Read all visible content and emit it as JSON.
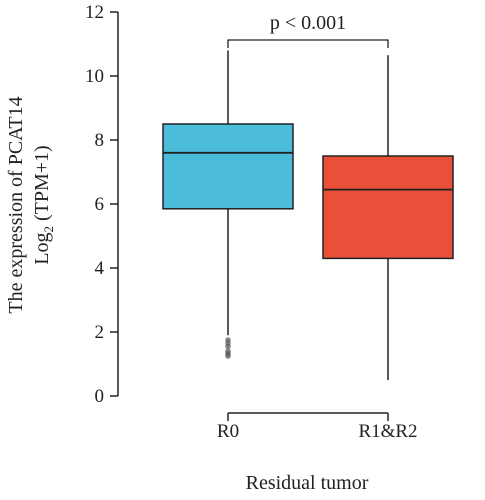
{
  "chart_data": {
    "type": "boxplot",
    "xlabel": "Residual tumor",
    "ylabel_line1": "The expression of PCAT14",
    "ylabel_line2_prefix": "Log",
    "ylabel_line2_sub": "2",
    "ylabel_line2_suffix": " (TPM+1)",
    "ylim": [
      0,
      12
    ],
    "yticks": [
      "0",
      "2",
      "4",
      "6",
      "8",
      "10",
      "12"
    ],
    "categories": [
      "R0",
      "R1&R2"
    ],
    "boxes": [
      {
        "category": "R0",
        "color": "#4bbcd9",
        "whisker_low": 1.9,
        "q1": 5.85,
        "median": 7.6,
        "q3": 8.5,
        "whisker_high": 10.8,
        "outliers": [
          1.75,
          1.65,
          1.55,
          1.4,
          1.32,
          1.25
        ]
      },
      {
        "category": "R1&R2",
        "color": "#e8503a",
        "whisker_low": 0.5,
        "q1": 4.3,
        "median": 6.45,
        "q3": 7.5,
        "whisker_high": 10.65,
        "outliers": []
      }
    ],
    "annotation": {
      "text": "p < 0.001",
      "from": "R0",
      "to": "R1&R2"
    },
    "grid": false,
    "legend": "none"
  }
}
